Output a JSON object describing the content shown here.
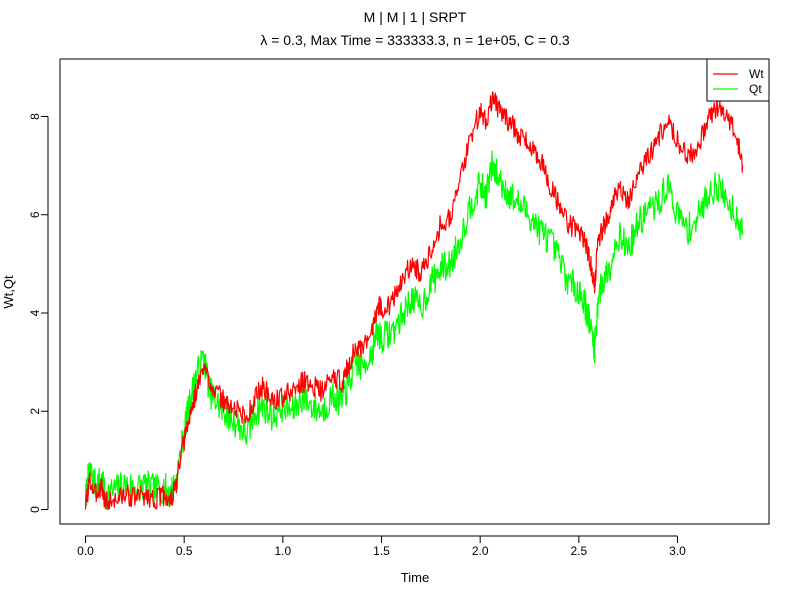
{
  "chart_data": {
    "type": "line",
    "title": "M | M | 1 | SRPT",
    "subtitle": "λ = 0.3, Max Time = 333333.3, n = 1e+05, C = 0.3",
    "xlabel": "Time",
    "ylabel": "Wt,Qt",
    "xlim": [
      0.0,
      3.34
    ],
    "ylim": [
      0,
      9
    ],
    "x_ticks": [
      0.0,
      0.5,
      1.0,
      1.5,
      2.0,
      2.5,
      3.0
    ],
    "x_tick_labels": [
      "0.0",
      "0.5",
      "1.0",
      "1.5",
      "2.0",
      "2.5",
      "3.0"
    ],
    "y_ticks": [
      0,
      2,
      4,
      6,
      8
    ],
    "y_tick_labels": [
      "0",
      "2",
      "4",
      "6",
      "8"
    ],
    "grid": false,
    "legend_position": "top-right",
    "series": [
      {
        "name": "Wt",
        "color": "#ff0000",
        "x": [
          0.0,
          0.02,
          0.05,
          0.08,
          0.1,
          0.15,
          0.2,
          0.25,
          0.3,
          0.35,
          0.4,
          0.43,
          0.46,
          0.5,
          0.53,
          0.56,
          0.6,
          0.63,
          0.66,
          0.7,
          0.73,
          0.78,
          0.82,
          0.86,
          0.9,
          0.95,
          1.0,
          1.05,
          1.1,
          1.15,
          1.2,
          1.25,
          1.3,
          1.33,
          1.37,
          1.4,
          1.45,
          1.48,
          1.5,
          1.55,
          1.6,
          1.65,
          1.7,
          1.75,
          1.8,
          1.85,
          1.9,
          1.95,
          2.0,
          2.03,
          2.06,
          2.1,
          2.15,
          2.2,
          2.25,
          2.3,
          2.35,
          2.4,
          2.45,
          2.5,
          2.53,
          2.56,
          2.58,
          2.6,
          2.63,
          2.66,
          2.7,
          2.75,
          2.8,
          2.85,
          2.9,
          2.95,
          3.0,
          3.05,
          3.1,
          3.15,
          3.2,
          3.25,
          3.3,
          3.33
        ],
        "values": [
          0.05,
          0.6,
          0.3,
          0.5,
          0.15,
          0.2,
          0.3,
          0.25,
          0.3,
          0.2,
          0.3,
          0.15,
          0.5,
          1.4,
          1.9,
          2.4,
          2.9,
          2.6,
          2.4,
          2.2,
          2.1,
          2.0,
          1.85,
          2.3,
          2.5,
          2.2,
          2.3,
          2.4,
          2.6,
          2.55,
          2.4,
          2.7,
          2.6,
          2.9,
          3.3,
          3.2,
          3.6,
          4.2,
          4.1,
          4.2,
          4.6,
          5.0,
          4.8,
          5.3,
          5.8,
          6.0,
          6.7,
          7.6,
          8.1,
          7.9,
          8.4,
          8.1,
          7.9,
          7.6,
          7.4,
          7.2,
          6.6,
          6.2,
          5.8,
          5.7,
          5.5,
          5.0,
          4.6,
          5.5,
          5.8,
          6.0,
          6.6,
          6.3,
          6.8,
          7.2,
          7.5,
          8.0,
          7.5,
          7.2,
          7.3,
          7.9,
          8.2,
          8.0,
          7.6,
          7.0
        ]
      },
      {
        "name": "Qt",
        "color": "#00ff00",
        "x": [
          0.0,
          0.02,
          0.05,
          0.08,
          0.1,
          0.15,
          0.2,
          0.25,
          0.3,
          0.35,
          0.4,
          0.43,
          0.46,
          0.5,
          0.53,
          0.56,
          0.6,
          0.63,
          0.66,
          0.7,
          0.73,
          0.78,
          0.82,
          0.86,
          0.9,
          0.95,
          1.0,
          1.05,
          1.1,
          1.15,
          1.2,
          1.25,
          1.3,
          1.33,
          1.37,
          1.4,
          1.45,
          1.48,
          1.5,
          1.55,
          1.6,
          1.65,
          1.7,
          1.75,
          1.8,
          1.85,
          1.9,
          1.95,
          2.0,
          2.03,
          2.06,
          2.1,
          2.15,
          2.2,
          2.25,
          2.3,
          2.35,
          2.4,
          2.45,
          2.5,
          2.53,
          2.56,
          2.58,
          2.6,
          2.63,
          2.66,
          2.7,
          2.75,
          2.8,
          2.85,
          2.9,
          2.95,
          3.0,
          3.05,
          3.1,
          3.15,
          3.2,
          3.25,
          3.3,
          3.33
        ],
        "values": [
          0.2,
          0.8,
          0.5,
          0.6,
          0.3,
          0.4,
          0.5,
          0.45,
          0.5,
          0.4,
          0.45,
          0.3,
          0.6,
          1.6,
          2.2,
          2.7,
          3.1,
          2.4,
          2.2,
          2.0,
          1.9,
          1.7,
          1.5,
          2.0,
          2.1,
          1.9,
          2.1,
          2.0,
          2.3,
          2.1,
          2.0,
          2.3,
          2.2,
          2.5,
          3.0,
          2.9,
          3.2,
          3.6,
          3.5,
          3.6,
          3.9,
          4.3,
          4.1,
          4.6,
          4.9,
          5.0,
          5.5,
          6.2,
          6.6,
          6.4,
          7.0,
          6.7,
          6.4,
          6.2,
          6.0,
          5.7,
          5.5,
          5.1,
          4.6,
          4.5,
          4.2,
          3.7,
          3.3,
          4.4,
          4.7,
          5.0,
          5.6,
          5.3,
          5.8,
          6.1,
          6.2,
          6.6,
          6.0,
          5.7,
          5.9,
          6.4,
          6.6,
          6.3,
          6.0,
          5.6
        ]
      }
    ]
  }
}
